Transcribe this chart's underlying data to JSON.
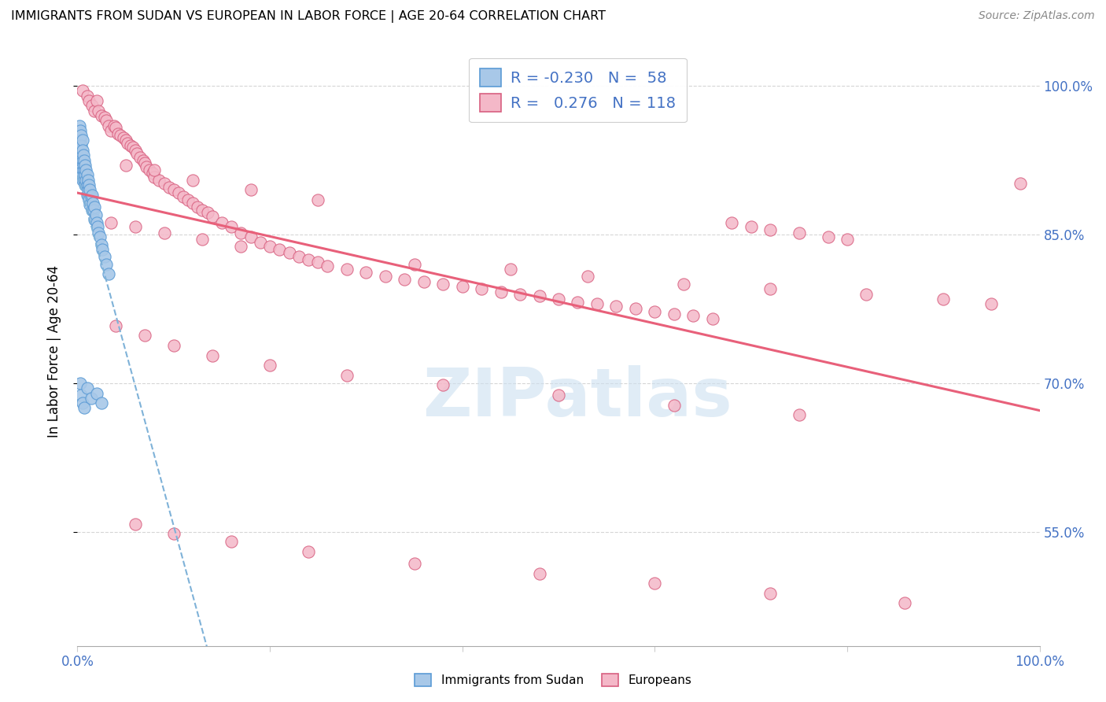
{
  "title": "IMMIGRANTS FROM SUDAN VS EUROPEAN IN LABOR FORCE | AGE 20-64 CORRELATION CHART",
  "source": "Source: ZipAtlas.com",
  "ylabel": "In Labor Force | Age 20-64",
  "xlim": [
    0.0,
    1.0
  ],
  "ylim": [
    0.435,
    1.03
  ],
  "yticks": [
    0.55,
    0.7,
    0.85,
    1.0
  ],
  "ytick_labels": [
    "55.0%",
    "70.0%",
    "85.0%",
    "100.0%"
  ],
  "xtick_labels": [
    "0.0%",
    "",
    "",
    "",
    "",
    "100.0%"
  ],
  "xticks": [
    0.0,
    0.2,
    0.4,
    0.6,
    0.8,
    1.0
  ],
  "legend_r_sudan": "-0.230",
  "legend_n_sudan": "58",
  "legend_r_european": "0.276",
  "legend_n_european": "118",
  "color_sudan_fill": "#a8c8e8",
  "color_sudan_edge": "#5b9bd5",
  "color_european_fill": "#f4b8c8",
  "color_european_edge": "#d86080",
  "color_trend_sudan": "#7fb2d8",
  "color_trend_european": "#e8607a",
  "color_axis_text": "#4472c4",
  "watermark_color": "#cce0f0",
  "sudan_x": [
    0.002,
    0.002,
    0.003,
    0.003,
    0.003,
    0.004,
    0.004,
    0.004,
    0.005,
    0.005,
    0.005,
    0.005,
    0.005,
    0.006,
    0.006,
    0.006,
    0.007,
    0.007,
    0.007,
    0.008,
    0.008,
    0.008,
    0.009,
    0.009,
    0.01,
    0.01,
    0.01,
    0.011,
    0.011,
    0.012,
    0.012,
    0.013,
    0.013,
    0.014,
    0.015,
    0.015,
    0.016,
    0.017,
    0.018,
    0.018,
    0.019,
    0.02,
    0.021,
    0.022,
    0.023,
    0.025,
    0.026,
    0.028,
    0.03,
    0.032,
    0.003,
    0.004,
    0.005,
    0.007,
    0.01,
    0.014,
    0.02,
    0.025
  ],
  "sudan_y": [
    0.96,
    0.94,
    0.955,
    0.945,
    0.93,
    0.95,
    0.94,
    0.925,
    0.945,
    0.935,
    0.925,
    0.915,
    0.905,
    0.93,
    0.92,
    0.91,
    0.925,
    0.915,
    0.905,
    0.92,
    0.91,
    0.9,
    0.915,
    0.905,
    0.91,
    0.9,
    0.89,
    0.905,
    0.895,
    0.9,
    0.885,
    0.895,
    0.88,
    0.888,
    0.89,
    0.875,
    0.882,
    0.875,
    0.878,
    0.865,
    0.87,
    0.862,
    0.858,
    0.852,
    0.848,
    0.84,
    0.835,
    0.828,
    0.82,
    0.81,
    0.7,
    0.688,
    0.68,
    0.675,
    0.695,
    0.685,
    0.69,
    0.68
  ],
  "european_x": [
    0.005,
    0.01,
    0.012,
    0.015,
    0.018,
    0.02,
    0.022,
    0.025,
    0.028,
    0.03,
    0.032,
    0.035,
    0.038,
    0.04,
    0.042,
    0.045,
    0.048,
    0.05,
    0.052,
    0.055,
    0.058,
    0.06,
    0.062,
    0.065,
    0.068,
    0.07,
    0.072,
    0.075,
    0.078,
    0.08,
    0.085,
    0.09,
    0.095,
    0.1,
    0.105,
    0.11,
    0.115,
    0.12,
    0.125,
    0.13,
    0.135,
    0.14,
    0.15,
    0.16,
    0.17,
    0.18,
    0.19,
    0.2,
    0.21,
    0.22,
    0.23,
    0.24,
    0.25,
    0.26,
    0.28,
    0.3,
    0.32,
    0.34,
    0.36,
    0.38,
    0.4,
    0.42,
    0.44,
    0.46,
    0.48,
    0.5,
    0.52,
    0.54,
    0.56,
    0.58,
    0.6,
    0.62,
    0.64,
    0.66,
    0.68,
    0.7,
    0.72,
    0.75,
    0.78,
    0.8,
    0.05,
    0.08,
    0.12,
    0.18,
    0.25,
    0.035,
    0.06,
    0.09,
    0.13,
    0.17,
    0.04,
    0.07,
    0.1,
    0.14,
    0.2,
    0.28,
    0.38,
    0.5,
    0.62,
    0.75,
    0.35,
    0.45,
    0.53,
    0.63,
    0.72,
    0.82,
    0.9,
    0.95,
    0.06,
    0.1,
    0.16,
    0.24,
    0.35,
    0.48,
    0.6,
    0.72,
    0.86,
    0.98
  ],
  "european_y": [
    0.995,
    0.99,
    0.985,
    0.98,
    0.975,
    0.985,
    0.975,
    0.97,
    0.968,
    0.965,
    0.96,
    0.955,
    0.96,
    0.958,
    0.952,
    0.95,
    0.948,
    0.945,
    0.942,
    0.94,
    0.938,
    0.935,
    0.932,
    0.928,
    0.925,
    0.922,
    0.918,
    0.915,
    0.912,
    0.908,
    0.905,
    0.902,
    0.898,
    0.895,
    0.892,
    0.888,
    0.885,
    0.882,
    0.878,
    0.875,
    0.872,
    0.868,
    0.862,
    0.858,
    0.852,
    0.848,
    0.842,
    0.838,
    0.835,
    0.832,
    0.828,
    0.825,
    0.822,
    0.818,
    0.815,
    0.812,
    0.808,
    0.805,
    0.802,
    0.8,
    0.798,
    0.795,
    0.792,
    0.79,
    0.788,
    0.785,
    0.782,
    0.78,
    0.778,
    0.775,
    0.772,
    0.77,
    0.768,
    0.765,
    0.862,
    0.858,
    0.855,
    0.852,
    0.848,
    0.845,
    0.92,
    0.915,
    0.905,
    0.895,
    0.885,
    0.862,
    0.858,
    0.852,
    0.845,
    0.838,
    0.758,
    0.748,
    0.738,
    0.728,
    0.718,
    0.708,
    0.698,
    0.688,
    0.678,
    0.668,
    0.82,
    0.815,
    0.808,
    0.8,
    0.795,
    0.79,
    0.785,
    0.78,
    0.558,
    0.548,
    0.54,
    0.53,
    0.518,
    0.508,
    0.498,
    0.488,
    0.478,
    0.902
  ]
}
